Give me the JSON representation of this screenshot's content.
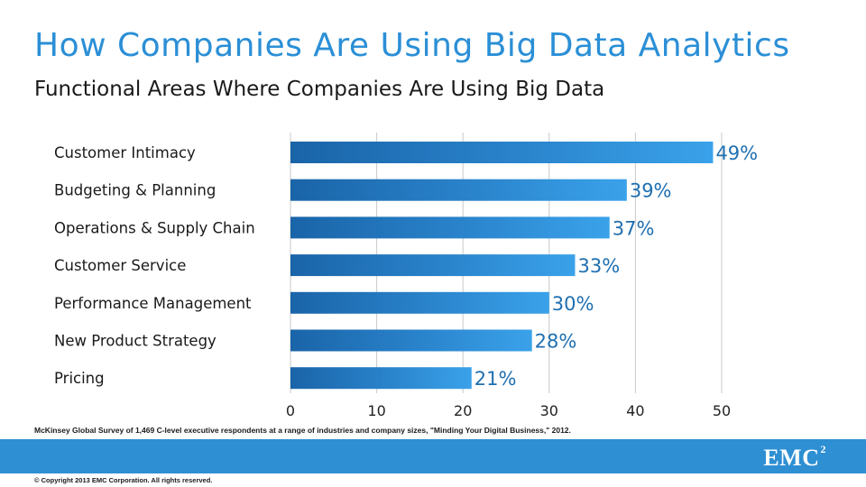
{
  "header": {
    "title": "How Companies Are Using Big Data Analytics",
    "subtitle": "Functional Areas Where Companies Are Using Big Data"
  },
  "chart_data": {
    "type": "bar",
    "orientation": "horizontal",
    "categories": [
      "Customer Intimacy",
      "Budgeting & Planning",
      "Operations & Supply Chain",
      "Customer Service",
      "Performance Management",
      "New Product Strategy",
      "Pricing"
    ],
    "values": [
      49,
      39,
      37,
      33,
      30,
      28,
      21
    ],
    "data_labels": [
      "49%",
      "39%",
      "37%",
      "33%",
      "30%",
      "28%",
      "21%"
    ],
    "title": "Functional Areas Where Companies Are Using Big Data",
    "xlabel": "",
    "ylabel": "",
    "xlim": [
      0,
      50
    ],
    "xticks": [
      0,
      10,
      20,
      30,
      40,
      50
    ],
    "grid": true,
    "legend": "none",
    "bar_color": "#2a84cc",
    "label_color": "#1f6fb0"
  },
  "footer": {
    "source": "McKinsey Global Survey of 1,469 C-level executive respondents at a range of industries and company sizes, \"Minding Your Digital Business,\" 2012.",
    "copyright": "© Copyright 2013 EMC Corporation. All rights reserved.",
    "logo_text": "EMC",
    "logo_superscript": "2",
    "band_color": "#2e8fd3"
  }
}
